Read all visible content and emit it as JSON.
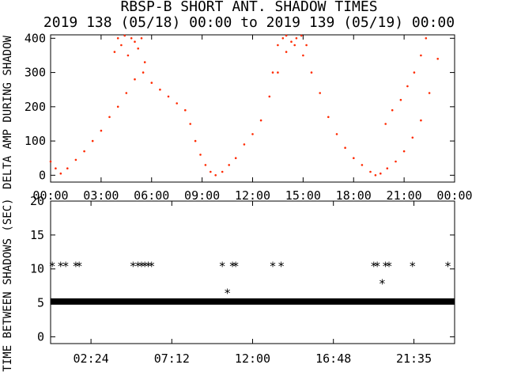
{
  "chart_data": [
    {
      "type": "scatter",
      "title": "RBSP-B SHORT ANT. SHADOW TIMES",
      "subtitle": "2019 138 (05/18) 00:00 to 2019 139 (05/19) 00:00",
      "xlabel": "",
      "ylabel": "DELTA AMP DURING SHADOW",
      "xlim": [
        0,
        24
      ],
      "ylim": [
        -20,
        410
      ],
      "yticks": [
        "0",
        "100",
        "200",
        "300",
        "400"
      ],
      "xtick_labels": [
        "00:00",
        "03:00",
        "06:00",
        "09:00",
        "12:00",
        "15:00",
        "18:00",
        "21:00",
        "00:00"
      ],
      "xticks": [
        0,
        3,
        6,
        9,
        12,
        15,
        18,
        21,
        24
      ],
      "color": "#ff2a00",
      "series": [
        {
          "x": [
            0.0,
            0.3,
            0.6,
            1.0,
            1.5,
            2.0,
            2.5,
            3.0,
            3.5,
            4.0,
            4.5,
            5.0,
            5.5,
            6.0,
            6.5,
            7.0,
            7.5,
            8.0,
            8.3,
            8.6,
            8.9,
            9.2,
            9.5,
            9.8,
            10.2,
            10.6,
            11.0,
            11.5,
            12.0,
            12.5,
            13.0,
            13.5,
            14.0,
            14.5,
            15.0,
            15.5,
            16.0,
            16.5,
            17.0,
            17.5,
            18.0,
            18.5,
            19.0,
            19.3,
            19.6,
            20.0,
            20.5,
            21.0,
            21.5,
            22.0,
            22.5,
            23.0
          ],
          "y": [
            40,
            20,
            5,
            20,
            45,
            70,
            100,
            130,
            170,
            200,
            240,
            280,
            300,
            270,
            250,
            230,
            210,
            190,
            150,
            100,
            60,
            30,
            10,
            0,
            10,
            30,
            50,
            90,
            120,
            160,
            230,
            300,
            360,
            380,
            350,
            300,
            240,
            170,
            120,
            80,
            50,
            30,
            10,
            0,
            5,
            20,
            40,
            70,
            110,
            160,
            240,
            340
          ]
        },
        {
          "x": [
            3.8,
            4.0,
            4.2,
            4.4,
            4.6,
            4.8,
            5.0,
            5.2,
            5.4,
            5.6,
            13.2,
            13.5,
            13.8,
            14.0,
            14.3,
            14.6,
            14.9,
            15.2,
            19.9,
            20.3,
            20.8,
            21.2,
            21.6,
            22.0,
            22.3
          ],
          "y": [
            360,
            400,
            380,
            410,
            350,
            400,
            390,
            370,
            400,
            330,
            300,
            380,
            400,
            410,
            390,
            400,
            410,
            380,
            150,
            190,
            220,
            260,
            300,
            350,
            400
          ]
        }
      ]
    },
    {
      "type": "scatter",
      "title": "",
      "xlabel": "",
      "ylabel": "TIME BETWEEN SHADOWS (SEC)",
      "xlim": [
        0,
        24
      ],
      "ylim": [
        -1,
        20
      ],
      "yticks": [
        "0",
        "5",
        "10",
        "15",
        "20"
      ],
      "xtick_labels": [
        "02:24",
        "07:12",
        "12:00",
        "16:48",
        "21:35"
      ],
      "xticks": [
        2.4,
        7.2,
        12.0,
        16.8,
        21.583
      ],
      "marker": "*",
      "color": "#000000",
      "band": {
        "from": 0.0,
        "to": 24.0,
        "y": 5.2
      },
      "points": [
        {
          "x": 0.1,
          "y": 10.5
        },
        {
          "x": 0.6,
          "y": 10.5
        },
        {
          "x": 0.9,
          "y": 10.5
        },
        {
          "x": 1.5,
          "y": 10.5
        },
        {
          "x": 1.7,
          "y": 10.5
        },
        {
          "x": 4.9,
          "y": 10.5
        },
        {
          "x": 5.2,
          "y": 10.5
        },
        {
          "x": 5.4,
          "y": 10.5
        },
        {
          "x": 5.6,
          "y": 10.5
        },
        {
          "x": 5.8,
          "y": 10.5
        },
        {
          "x": 6.0,
          "y": 10.5
        },
        {
          "x": 10.2,
          "y": 10.5
        },
        {
          "x": 10.8,
          "y": 10.5
        },
        {
          "x": 11.0,
          "y": 10.5
        },
        {
          "x": 10.5,
          "y": 6.5
        },
        {
          "x": 13.2,
          "y": 10.5
        },
        {
          "x": 13.7,
          "y": 10.5
        },
        {
          "x": 19.2,
          "y": 10.5
        },
        {
          "x": 19.4,
          "y": 10.5
        },
        {
          "x": 19.9,
          "y": 10.5
        },
        {
          "x": 20.1,
          "y": 10.5
        },
        {
          "x": 19.7,
          "y": 7.9
        },
        {
          "x": 21.5,
          "y": 10.5
        },
        {
          "x": 23.6,
          "y": 10.5
        }
      ]
    }
  ]
}
